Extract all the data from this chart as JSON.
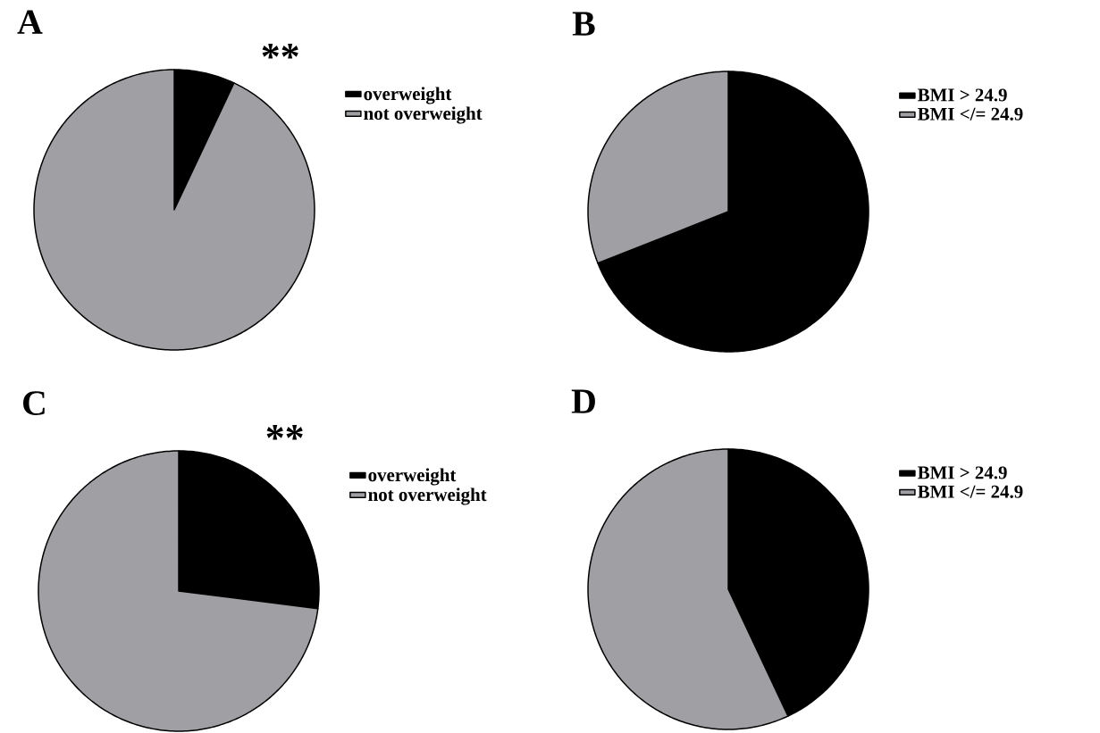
{
  "chart_data": [
    {
      "type": "pie",
      "title": "A",
      "categories": [
        "overweight",
        "not overweight"
      ],
      "values": [
        7,
        93
      ],
      "colors": [
        "#000000",
        "#a0a0a4"
      ],
      "legend": "right",
      "annotations": [
        "**"
      ]
    },
    {
      "type": "pie",
      "title": "B",
      "categories": [
        "BMI > 24.9",
        "BMI </= 24.9"
      ],
      "values": [
        69,
        31
      ],
      "colors": [
        "#000000",
        "#a0a0a4"
      ],
      "legend": "right"
    },
    {
      "type": "pie",
      "title": "C",
      "categories": [
        "overweight",
        "not overweight"
      ],
      "values": [
        27,
        73
      ],
      "colors": [
        "#000000",
        "#a0a0a4"
      ],
      "legend": "right",
      "annotations": [
        "**"
      ]
    },
    {
      "type": "pie",
      "title": "D",
      "categories": [
        "BMI > 24.9",
        "BMI </= 24.9"
      ],
      "values": [
        43,
        57
      ],
      "colors": [
        "#000000",
        "#a0a0a4"
      ],
      "legend": "right"
    }
  ]
}
